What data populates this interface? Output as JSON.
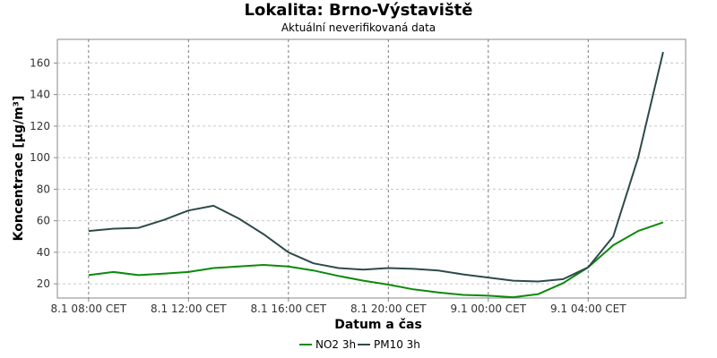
{
  "chart_data": {
    "type": "line",
    "title": "Lokalita: Brno-Výstaviště",
    "subtitle": "Aktuální neverifikovaná data",
    "xlabel": "Datum a čas",
    "ylabel": "Koncentrace [µg/m³]",
    "x_tick_labels": [
      "8.1 08:00 CET",
      "8.1 12:00 CET",
      "8.1 16:00 CET",
      "8.1 20:00 CET",
      "9.1 00:00 CET",
      "9.1 04:00 CET"
    ],
    "x_tick_hours": [
      0,
      4,
      8,
      12,
      16,
      20
    ],
    "x_range_hours": [
      -1.25,
      23.9
    ],
    "x_hours": [
      0,
      1,
      2,
      3,
      4,
      5,
      6,
      7,
      8,
      9,
      10,
      11,
      12,
      13,
      14,
      15,
      16,
      17,
      18,
      19,
      20,
      21,
      22,
      23
    ],
    "ylim": [
      11,
      175
    ],
    "yticks": [
      20,
      40,
      60,
      80,
      100,
      120,
      140,
      160
    ],
    "grid": true,
    "legend_position": "bottom",
    "series": [
      {
        "name": "NO2 3h",
        "color": "#0b8a0b",
        "values": [
          25.5,
          27.5,
          25.5,
          26.5,
          27.5,
          30,
          31,
          32,
          31,
          28.5,
          25,
          22,
          19.5,
          16.5,
          14.5,
          13,
          12.5,
          11.5,
          13.5,
          20.5,
          30.5,
          44.5,
          53.5,
          59
        ]
      },
      {
        "name": "PM10 3h",
        "color": "#2e4a4a",
        "values": [
          53.5,
          55,
          55.5,
          60.5,
          66.5,
          69.5,
          61.5,
          51.5,
          40,
          33,
          30,
          29,
          30,
          29.5,
          28.5,
          26,
          24,
          22,
          21.5,
          23,
          30.5,
          50,
          100,
          167
        ]
      }
    ]
  }
}
